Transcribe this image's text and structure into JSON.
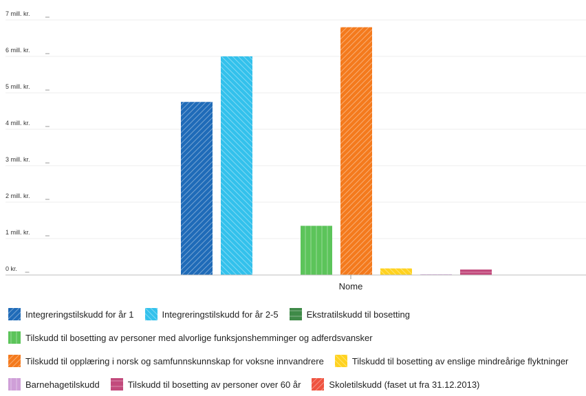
{
  "chart_data": {
    "type": "bar",
    "categories": [
      "Nome"
    ],
    "y_ticks": [
      "0 kr.",
      "1 mill. kr.",
      "2 mill. kr.",
      "3 mill. kr.",
      "4 mill. kr.",
      "5 mill. kr.",
      "6 mill. kr.",
      "7 mill. kr."
    ],
    "ylim": [
      0,
      7000000
    ],
    "grid": true,
    "legend_position": "bottom",
    "series": [
      {
        "name": "Integreringstilskudd for år 1",
        "values": [
          4750000
        ],
        "color": "#1f6bb8",
        "pattern": "diagonal-forward"
      },
      {
        "name": "Integreringstilskudd for år 2-5",
        "values": [
          6000000
        ],
        "color": "#33c1ec",
        "pattern": "diagonal-back"
      },
      {
        "name": "Ekstratilskudd til bosetting",
        "values": [
          0
        ],
        "color": "#3f8a48",
        "pattern": "horizontal"
      },
      {
        "name": "Tilskudd til bosetting av personer med alvorlige funksjonshemminger og adferdsvansker",
        "values": [
          1350000
        ],
        "color": "#5cc45a",
        "pattern": "vertical"
      },
      {
        "name": "Tilskudd til opplæring i norsk og samfunnskunnskap for voksne innvandrere",
        "values": [
          6800000
        ],
        "color": "#f47a1d",
        "pattern": "diagonal-forward"
      },
      {
        "name": "Tilskudd til bosetting av enslige mindreårige flyktninger",
        "values": [
          180000
        ],
        "color": "#ffd21f",
        "pattern": "diagonal-back"
      },
      {
        "name": "Barnehagetilskudd",
        "values": [
          20000
        ],
        "color": "#cf9fd8",
        "pattern": "vertical"
      },
      {
        "name": "Tilskudd til bosetting av personer over 60 år",
        "values": [
          150000
        ],
        "color": "#c24a7c",
        "pattern": "horizontal"
      },
      {
        "name": "Skoletilskudd (faset ut fra 31.12.2013)",
        "values": [
          0
        ],
        "color": "#ef5340",
        "pattern": "diagonal-forward"
      }
    ]
  },
  "legend_rows": [
    [
      0,
      1,
      2
    ],
    [
      3
    ],
    [
      4,
      5
    ],
    [
      6,
      7,
      8
    ]
  ]
}
